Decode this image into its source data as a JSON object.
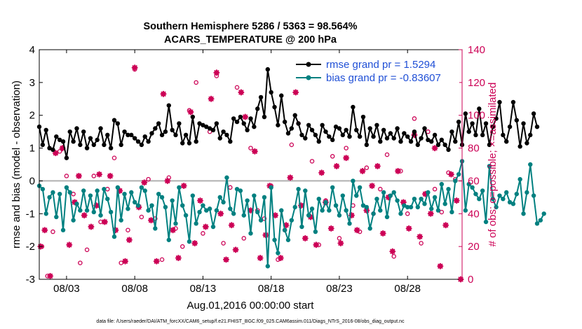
{
  "chart_data": {
    "type": "line",
    "title": "Southern Hemisphere 5286 / 5363 = 98.564%",
    "subtitle": "ACARS_TEMPERATURE @ 200 hPa",
    "xlabel": "Aug.01,2016 00:00:00 start",
    "ylabel": "rmse and bias (model - observation)",
    "ylabel_right": "# of obs: o=possible; ×=assimilated",
    "footer": "data file: /Users/raeder/DAI/ATM_forcXX/CAM6_setup/f.e21.FHIST_BGC.f09_025.CAM6assim.011/Diags_NTrS_2016-08/obs_diag_output.nc",
    "x_ticks": [
      "08/03",
      "08/08",
      "08/13",
      "08/18",
      "08/23",
      "08/28"
    ],
    "x_tick_days": [
      3,
      8,
      13,
      18,
      23,
      28
    ],
    "x_range_days": [
      1.0,
      32.0
    ],
    "ylim": [
      -3,
      4
    ],
    "y_ticks": [
      "-3",
      "-2",
      "-1",
      "0",
      "1",
      "2",
      "3",
      "4"
    ],
    "ylim_right": [
      0,
      140
    ],
    "y_ticks_right": [
      "0",
      "20",
      "40",
      "60",
      "80",
      "100",
      "120",
      "140"
    ],
    "legend_position": "top-right",
    "x_step_days": 0.25,
    "x_start_day": 1.0,
    "colors": {
      "rmse": "#000000",
      "bias": "#008080",
      "obs": "#cc0055",
      "zero_line": "#b0b0b0",
      "axis": "#000000"
    },
    "series": [
      {
        "name": "rmse grand pr = 1.5294",
        "values": [
          1.65,
          1.1,
          1.55,
          1.0,
          0.95,
          1.35,
          1.25,
          1.2,
          0.7,
          1.5,
          1.2,
          1.6,
          1.1,
          1.5,
          1.0,
          1.3,
          1.1,
          1.25,
          1.6,
          1.1,
          1.4,
          1.0,
          1.85,
          1.75,
          1.1,
          1.5,
          1.4,
          1.4,
          1.3,
          1.2,
          1.1,
          1.35,
          1.2,
          1.45,
          1.6,
          1.75,
          1.4,
          1.5,
          2.3,
          1.55,
          1.4,
          1.75,
          1.15,
          1.4,
          1.15,
          1.95,
          1.2,
          1.75,
          1.7,
          1.65,
          1.6,
          1.55,
          1.75,
          1.3,
          1.5,
          1.4,
          1.2,
          1.9,
          1.8,
          1.95,
          1.75,
          1.55,
          1.9,
          1.65,
          2.2,
          2.55,
          1.95,
          3.4,
          2.7,
          2.25,
          1.7,
          2.6,
          1.8,
          1.45,
          1.6,
          2.0,
          1.75,
          1.4,
          1.3,
          1.7,
          1.55,
          1.4,
          1.2,
          1.7,
          1.5,
          1.35,
          1.25,
          1.65,
          1.6,
          1.4,
          1.55,
          1.35,
          2.25,
          1.55,
          1.35,
          1.95,
          1.1,
          1.6,
          1.35,
          1.7,
          1.2,
          1.55,
          1.3,
          1.45,
          1.3,
          1.6,
          1.2,
          1.45,
          1.35,
          1.2,
          1.5,
          1.1,
          1.3,
          1.6,
          1.25,
          1.2,
          1.4,
          1.1,
          1.25,
          1.1,
          0.95,
          1.5,
          1.2,
          1.8,
          1.1,
          2.05,
          1.5,
          1.75,
          1.4,
          2.2,
          1.4,
          1.75,
          1.1,
          1.65,
          1.9,
          2.4,
          1.4,
          1.2,
          1.65,
          2.4,
          1.85,
          1.05,
          1.75,
          1.15,
          1.4,
          2.05,
          1.65
        ],
        "color": "#000000"
      },
      {
        "name": "bias grand pr = -0.83607",
        "values": [
          -0.15,
          -0.25,
          -1.0,
          -0.5,
          -0.35,
          -1.1,
          -0.4,
          -1.5,
          -0.2,
          -0.35,
          -1.2,
          -0.7,
          -0.9,
          -0.3,
          -0.9,
          -0.45,
          -0.95,
          -0.3,
          -1.05,
          -0.25,
          -0.55,
          -0.95,
          -1.7,
          -0.2,
          -1.2,
          -0.4,
          -0.85,
          -0.35,
          -0.65,
          -0.75,
          -0.2,
          -0.3,
          -0.9,
          -0.75,
          -1.45,
          -0.4,
          -0.5,
          -0.8,
          -1.8,
          -0.6,
          -1.3,
          -0.2,
          -0.75,
          -1.05,
          -1.85,
          -0.45,
          -1.3,
          -0.95,
          -0.75,
          -0.9,
          -0.85,
          -1.4,
          -0.9,
          -0.5,
          -0.65,
          0.1,
          -0.85,
          -1.0,
          -0.25,
          -0.3,
          -1.05,
          -0.6,
          -1.6,
          -0.45,
          -0.95,
          -1.2,
          -0.5,
          -2.6,
          -0.2,
          -1.8,
          -2.2,
          -0.9,
          -1.5,
          -1.8,
          -1.2,
          -0.8,
          -0.25,
          -1.4,
          -0.3,
          -1.05,
          -0.85,
          -1.55,
          -0.55,
          -0.9,
          -0.65,
          -0.9,
          -0.2,
          -0.75,
          -1.05,
          -0.45,
          -0.9,
          -1.3,
          0.0,
          -0.45,
          -0.2,
          -0.75,
          -0.8,
          -1.45,
          -1.0,
          -0.55,
          -0.9,
          -0.35,
          -1.1,
          -0.45,
          -0.35,
          -0.6,
          -1.0,
          -0.75,
          -0.8,
          -0.8,
          -0.55,
          -0.8,
          -0.55,
          -0.7,
          -0.35,
          -0.85,
          -0.5,
          -0.9,
          -0.1,
          -0.7,
          -0.25,
          -0.95,
          0.0,
          0.2,
          0.6,
          -0.9,
          -0.1,
          -0.2,
          -0.4,
          -0.55,
          -0.3,
          -1.25,
          0.45,
          -0.55,
          -0.8,
          -0.45,
          -0.55,
          -0.35,
          -0.65,
          -0.7,
          -0.4,
          0.05,
          -1.0,
          -0.35,
          0.5,
          -0.45,
          -1.3,
          -1.2,
          -1.0
        ],
        "color": "#008080"
      }
    ],
    "obs_possible": [
      {
        "x": 1.2,
        "y": 20
      },
      {
        "x": 1.6,
        "y": 2
      },
      {
        "x": 2.0,
        "y": 29
      },
      {
        "x": 2.5,
        "y": 78
      },
      {
        "x": 3.0,
        "y": 63
      },
      {
        "x": 3.5,
        "y": 52
      },
      {
        "x": 4.0,
        "y": 10
      },
      {
        "x": 4.5,
        "y": 18
      },
      {
        "x": 5.0,
        "y": 63
      },
      {
        "x": 5.5,
        "y": 35
      },
      {
        "x": 6.0,
        "y": 55
      },
      {
        "x": 6.5,
        "y": 74
      },
      {
        "x": 7.0,
        "y": 10
      },
      {
        "x": 7.5,
        "y": 30
      },
      {
        "x": 8.0,
        "y": 128
      },
      {
        "x": 8.5,
        "y": 38
      },
      {
        "x": 9.0,
        "y": 61
      },
      {
        "x": 9.5,
        "y": 37
      },
      {
        "x": 10.0,
        "y": 12
      },
      {
        "x": 10.5,
        "y": 62
      },
      {
        "x": 11.0,
        "y": 31
      },
      {
        "x": 11.5,
        "y": 20
      },
      {
        "x": 12.0,
        "y": 103
      },
      {
        "x": 12.5,
        "y": 120
      },
      {
        "x": 13.0,
        "y": 28
      },
      {
        "x": 13.5,
        "y": 90
      },
      {
        "x": 14.0,
        "y": 124
      },
      {
        "x": 14.5,
        "y": 22
      },
      {
        "x": 15.0,
        "y": 56
      },
      {
        "x": 15.5,
        "y": 117
      },
      {
        "x": 16.0,
        "y": 25
      },
      {
        "x": 16.5,
        "y": 80
      },
      {
        "x": 17.0,
        "y": 42
      },
      {
        "x": 17.5,
        "y": 37
      },
      {
        "x": 18.0,
        "y": 57
      },
      {
        "x": 18.5,
        "y": 12
      },
      {
        "x": 19.0,
        "y": 30
      },
      {
        "x": 19.5,
        "y": 82
      },
      {
        "x": 20.0,
        "y": 95
      },
      {
        "x": 20.5,
        "y": 25
      },
      {
        "x": 21.0,
        "y": 72
      },
      {
        "x": 21.5,
        "y": 21
      },
      {
        "x": 22.0,
        "y": 48
      },
      {
        "x": 22.5,
        "y": 75
      },
      {
        "x": 23.0,
        "y": 25
      },
      {
        "x": 23.5,
        "y": 80
      },
      {
        "x": 24.0,
        "y": 45
      },
      {
        "x": 24.5,
        "y": 29
      },
      {
        "x": 25.0,
        "y": 68
      },
      {
        "x": 25.5,
        "y": 40
      },
      {
        "x": 26.0,
        "y": 55
      },
      {
        "x": 26.5,
        "y": 76
      },
      {
        "x": 27.0,
        "y": 14
      },
      {
        "x": 27.5,
        "y": 66
      },
      {
        "x": 28.0,
        "y": 40
      },
      {
        "x": 28.5,
        "y": 98
      },
      {
        "x": 29.0,
        "y": 22
      },
      {
        "x": 29.5,
        "y": 90
      },
      {
        "x": 30.0,
        "y": 55
      },
      {
        "x": 30.5,
        "y": 41
      },
      {
        "x": 31.0,
        "y": 65
      },
      {
        "x": 31.5,
        "y": 61
      }
    ],
    "obs_assimilated": [
      {
        "x": 1.1,
        "y": 20
      },
      {
        "x": 1.4,
        "y": 30
      },
      {
        "x": 1.8,
        "y": 2
      },
      {
        "x": 2.2,
        "y": 77
      },
      {
        "x": 2.7,
        "y": 80
      },
      {
        "x": 3.2,
        "y": 21
      },
      {
        "x": 3.6,
        "y": 47
      },
      {
        "x": 3.9,
        "y": 63
      },
      {
        "x": 4.3,
        "y": 39
      },
      {
        "x": 4.8,
        "y": 32
      },
      {
        "x": 5.2,
        "y": 45
      },
      {
        "x": 5.4,
        "y": 64
      },
      {
        "x": 5.8,
        "y": 35
      },
      {
        "x": 6.2,
        "y": 63
      },
      {
        "x": 6.6,
        "y": 30
      },
      {
        "x": 6.9,
        "y": 54
      },
      {
        "x": 7.3,
        "y": 11
      },
      {
        "x": 7.6,
        "y": 24
      },
      {
        "x": 8.0,
        "y": 129
      },
      {
        "x": 8.3,
        "y": 44
      },
      {
        "x": 8.7,
        "y": 59
      },
      {
        "x": 9.2,
        "y": 36
      },
      {
        "x": 9.6,
        "y": 11
      },
      {
        "x": 10.1,
        "y": 113
      },
      {
        "x": 10.4,
        "y": 60
      },
      {
        "x": 10.8,
        "y": 30
      },
      {
        "x": 11.2,
        "y": 13
      },
      {
        "x": 11.6,
        "y": 57
      },
      {
        "x": 12.1,
        "y": 102
      },
      {
        "x": 12.4,
        "y": 22
      },
      {
        "x": 12.8,
        "y": 48
      },
      {
        "x": 13.2,
        "y": 32
      },
      {
        "x": 13.6,
        "y": 110
      },
      {
        "x": 14.0,
        "y": 126
      },
      {
        "x": 14.3,
        "y": 40
      },
      {
        "x": 14.7,
        "y": 12
      },
      {
        "x": 15.1,
        "y": 33
      },
      {
        "x": 15.4,
        "y": 18
      },
      {
        "x": 15.8,
        "y": 114
      },
      {
        "x": 16.1,
        "y": 99
      },
      {
        "x": 16.5,
        "y": 42
      },
      {
        "x": 16.8,
        "y": 78
      },
      {
        "x": 17.2,
        "y": 13
      },
      {
        "x": 17.6,
        "y": 27
      },
      {
        "x": 17.9,
        "y": 57
      },
      {
        "x": 18.3,
        "y": 39
      },
      {
        "x": 18.7,
        "y": 13
      },
      {
        "x": 19.1,
        "y": 33
      },
      {
        "x": 19.4,
        "y": 62
      },
      {
        "x": 19.8,
        "y": 114
      },
      {
        "x": 20.2,
        "y": 45
      },
      {
        "x": 20.5,
        "y": 25
      },
      {
        "x": 20.9,
        "y": 38
      },
      {
        "x": 21.3,
        "y": 21
      },
      {
        "x": 21.7,
        "y": 65
      },
      {
        "x": 22.0,
        "y": 47
      },
      {
        "x": 22.4,
        "y": 31
      },
      {
        "x": 22.8,
        "y": 69
      },
      {
        "x": 23.1,
        "y": 22
      },
      {
        "x": 23.5,
        "y": 74
      },
      {
        "x": 23.9,
        "y": 39
      },
      {
        "x": 24.3,
        "y": 30
      },
      {
        "x": 24.7,
        "y": 66
      },
      {
        "x": 25.0,
        "y": 42
      },
      {
        "x": 25.4,
        "y": 57
      },
      {
        "x": 25.8,
        "y": 69
      },
      {
        "x": 26.2,
        "y": 28
      },
      {
        "x": 26.6,
        "y": 50
      },
      {
        "x": 26.9,
        "y": 17
      },
      {
        "x": 27.3,
        "y": 66
      },
      {
        "x": 27.7,
        "y": 47
      },
      {
        "x": 28.1,
        "y": 31
      },
      {
        "x": 28.5,
        "y": 88
      },
      {
        "x": 28.9,
        "y": 26
      },
      {
        "x": 29.3,
        "y": 52
      },
      {
        "x": 29.7,
        "y": 40
      },
      {
        "x": 30.0,
        "y": 80
      },
      {
        "x": 30.4,
        "y": 8
      },
      {
        "x": 30.8,
        "y": 33
      },
      {
        "x": 31.2,
        "y": 64
      },
      {
        "x": 31.6,
        "y": 48
      },
      {
        "x": 31.9,
        "y": 0
      }
    ]
  }
}
